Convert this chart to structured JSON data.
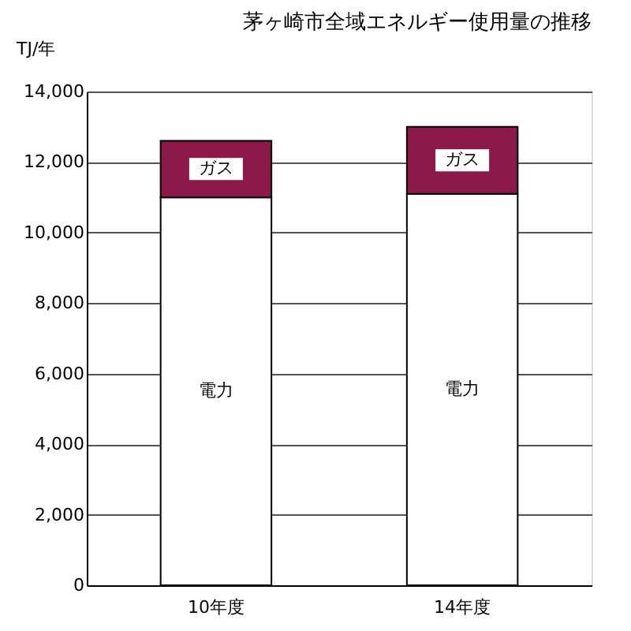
{
  "chart_data": {
    "type": "bar",
    "title": "茅ヶ崎市全域エネルギー使用量の推移",
    "ylabel": "TJ/年",
    "categories": [
      "10年度",
      "14年度"
    ],
    "series": [
      {
        "name": "電力",
        "color": "#ffffff",
        "values": [
          11000,
          11100
        ]
      },
      {
        "name": "ガス",
        "color": "#8b1a4a",
        "values": [
          1600,
          1900
        ]
      }
    ],
    "stacked": true,
    "ylim": [
      0,
      14000
    ],
    "yticks": [
      0,
      {
        "value": 2000,
        "label": "2,000"
      },
      {
        "value": 4000,
        "label": "4,000"
      },
      {
        "value": 6000,
        "label": "6,000"
      },
      {
        "value": 8000,
        "label": "8,000"
      },
      {
        "value": 10000,
        "label": "10,000"
      },
      {
        "value": 12000,
        "label": "12,000"
      },
      {
        "value": 14000,
        "label": "14,000"
      }
    ],
    "grid": "y",
    "legend": false
  }
}
